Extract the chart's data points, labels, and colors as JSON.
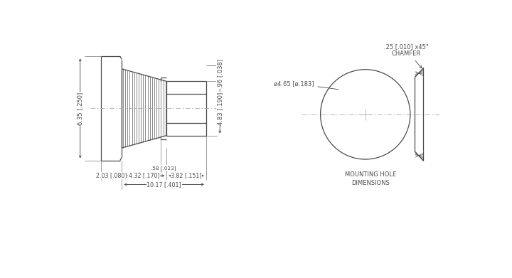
{
  "bg_color": "#ffffff",
  "line_color": "#4a4a4a",
  "dim_color": "#4a4a4a",
  "fig_width": 7.2,
  "fig_height": 3.91,
  "dpi": 100,
  "labels": {
    "hex_h": "6.35 [.250]",
    "hex_w": "2.03 [.080]",
    "knurl_w": "4.32 [.170]",
    "body_w": "3.82 [.151]",
    "total_w": "10.17 [.401]",
    "shoulder": ".58 [.023]",
    "body_h": "4.83 [.190]",
    "top_gap": ".96 [.038]",
    "diameter": "ø4.65 [ø.183]",
    "chamfer": ".25 [.010] x45°\nCHAMFER",
    "mounting": "MOUNTING HOLE\nDIMENSIONS"
  }
}
